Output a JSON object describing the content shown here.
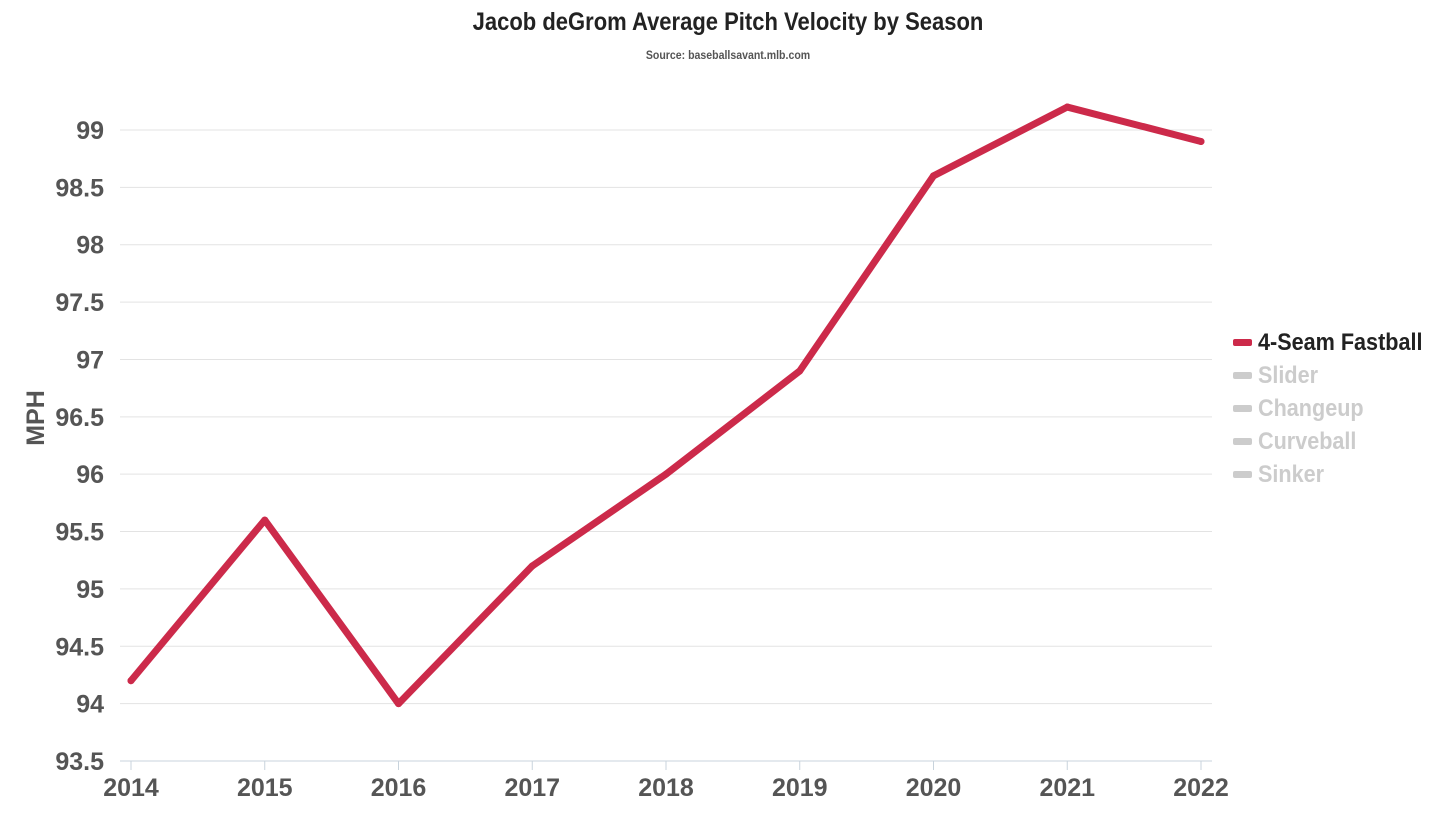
{
  "title": "Jacob deGrom Average Pitch Velocity by Season",
  "subtitle": "Source: baseballsavant.mlb.com",
  "colors": {
    "active_series": "#cc2a4a",
    "inactive_series": "#cccccc",
    "active_legend_text": "#222222",
    "grid": "#e3e3e3",
    "tick_text": "#555555"
  },
  "legend": [
    {
      "label": "4-Seam Fastball",
      "active": true
    },
    {
      "label": "Slider",
      "active": false
    },
    {
      "label": "Changeup",
      "active": false
    },
    {
      "label": "Curveball",
      "active": false
    },
    {
      "label": "Sinker",
      "active": false
    }
  ],
  "chart_data": {
    "type": "line",
    "title": "Jacob deGrom Average Pitch Velocity by Season",
    "subtitle": "Source: baseballsavant.mlb.com",
    "xlabel": "",
    "ylabel": "MPH",
    "x": [
      "2014",
      "2015",
      "2016",
      "2017",
      "2018",
      "2019",
      "2020",
      "2021",
      "2022"
    ],
    "ylim": [
      93.5,
      99.2
    ],
    "yticks": [
      "93.5",
      "94",
      "94.5",
      "95",
      "95.5",
      "96",
      "96.5",
      "97",
      "97.5",
      "98",
      "98.5",
      "99"
    ],
    "grid": true,
    "legend_position": "right",
    "series": [
      {
        "name": "4-Seam Fastball",
        "values": [
          94.2,
          95.6,
          94.0,
          95.2,
          96.0,
          96.9,
          98.6,
          99.2,
          98.9
        ]
      }
    ]
  }
}
